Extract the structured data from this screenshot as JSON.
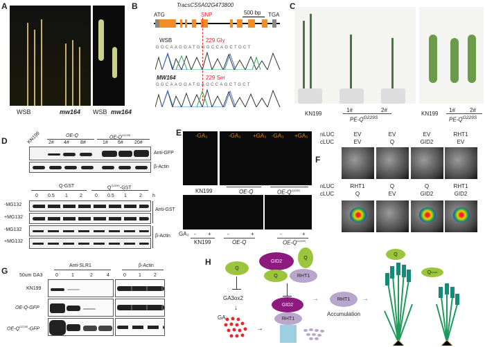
{
  "panels": {
    "a": "A",
    "b": "B",
    "c": "C",
    "d": "D",
    "e": "E",
    "f": "F",
    "g": "G",
    "h": "H"
  },
  "A": {
    "labels": [
      "WSB",
      "mw164",
      "WSB",
      "mw164"
    ]
  },
  "B": {
    "gene": "TracsCS5A02G473800",
    "start": "ATG",
    "stop": "TGA",
    "snp": "SNP",
    "scale": "500 bp",
    "wt": {
      "name": "WSB",
      "aa": "229 Gly",
      "seq": "GGCAAGGATGGGCCAGCTGCT"
    },
    "mut": {
      "name": "MW164",
      "aa": "229 Ser",
      "seq": "GGCAAGGATGAGCCAGCTGCT"
    }
  },
  "C": {
    "labels": [
      "KN199",
      "1#",
      "2#",
      "KN199",
      "1#",
      "2#"
    ],
    "group": "PE-Q",
    "group_sup": "G229S"
  },
  "D": {
    "top": {
      "wt": "KN199",
      "g1": "OE-Q",
      "g2": "OE-Q",
      "g2_sup": "G229S",
      "lanes1": [
        "2#",
        "4#",
        "8#"
      ],
      "lanes2": [
        "1#",
        "6#",
        "20#"
      ],
      "ab": [
        "Anti-GFP",
        "β-Actin"
      ]
    },
    "bottom": {
      "g1": "Q-GST",
      "g2": "Q",
      "g2_sup": "G229S",
      "g2_suffix": "-GST",
      "times": [
        "0",
        "0.5",
        "1",
        "2",
        "0",
        "0.5",
        "1",
        "2"
      ],
      "unit": "h",
      "rows": [
        "-MG132",
        "+MG132",
        "-MG132",
        "+MG132"
      ],
      "ab": [
        "Anti-GST",
        "β-Actin"
      ]
    }
  },
  "E": {
    "top_ga": [
      "-GA₃",
      "-GA₃",
      "+GA₃",
      "-GA₃",
      "+GA₃"
    ],
    "top_labels": [
      "KN199",
      "OE-Q",
      "OE-Q"
    ],
    "sup": "G229S",
    "ga": "GA₃",
    "signs": [
      "-",
      "+",
      "-",
      "+",
      "-",
      "+"
    ],
    "bottom_labels": [
      "KN199",
      "OE-Q",
      "OE-Q"
    ]
  },
  "F": {
    "row_labels": [
      "nLUC",
      "cLUC"
    ],
    "top": {
      "nluc": [
        "EV",
        "EV",
        "EV",
        "RHT1"
      ],
      "cluc": [
        "EV",
        "Q",
        "GID2",
        "EV"
      ]
    },
    "bottom": {
      "nluc": [
        "RHT1",
        "Q",
        "Q",
        "RHT1"
      ],
      "cluc": [
        "Q",
        "EV",
        "GID2",
        "GID2"
      ]
    }
  },
  "G": {
    "ab": [
      "Anti-SLR1",
      "β-Actin"
    ],
    "treatment": "50um GA3",
    "times": [
      "0",
      "1",
      "2",
      "4",
      "0",
      "1",
      "2",
      "4"
    ],
    "unit": "h",
    "rows": [
      "KN199",
      "OE-Q-GFP",
      "OE-Q"
    ],
    "row3_sup": "G229S",
    "row3_suffix": "-GFP"
  },
  "H": {
    "q": "Q",
    "gid2": "GID2",
    "rht1": "RHT1",
    "ga3ox2": "GA3ox2",
    "ga": "GA",
    "accum": "Accumulation",
    "qmut": "Q",
    "qmut_sup": "G229S"
  },
  "colors": {
    "orange": "#f28c28",
    "red": "#e8262b",
    "q_green": "#9bc53d",
    "gid2": "#8e1a80",
    "rht1": "#b8a6cc",
    "plant": "#1e9a5a"
  }
}
